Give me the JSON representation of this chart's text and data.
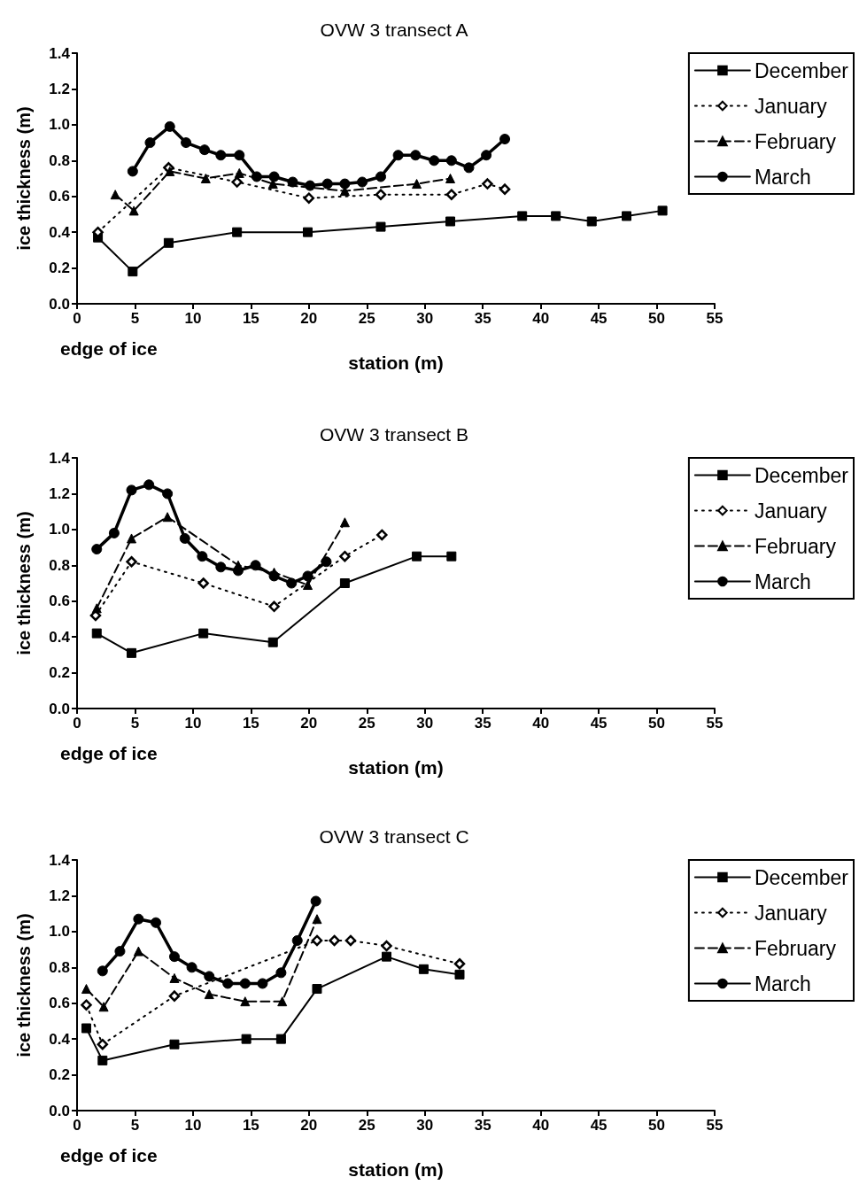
{
  "chart_data": [
    {
      "type": "line",
      "title": "OVW 3 transect A",
      "xlabel": "station (m)",
      "ylabel": "ice thickness (m)",
      "annotations": [
        "edge of ice"
      ],
      "xlim": [
        0,
        55
      ],
      "xticks": [
        0,
        5,
        10,
        15,
        20,
        25,
        30,
        35,
        40,
        45,
        50,
        55
      ],
      "ylim": [
        0,
        1.4
      ],
      "yticks": [
        {
          "value": 0,
          "label": "0.0"
        },
        {
          "value": 0.2,
          "label": "0.2"
        },
        {
          "value": 0.4,
          "label": "0.4"
        },
        {
          "value": 0.6,
          "label": "0.6"
        },
        {
          "value": 0.8,
          "label": "0.8"
        },
        {
          "value": 1.0,
          "label": "1.0"
        },
        {
          "value": 1.2,
          "label": "1.2"
        },
        {
          "value": 1.4,
          "label": "1.4"
        }
      ],
      "grid": false,
      "legend": "top right",
      "series": [
        {
          "name": "December",
          "color": "#000000",
          "marker": "square",
          "line_style": "solid",
          "x": [
            1.8,
            4.8,
            7.9,
            13.8,
            19.9,
            26.2,
            32.2,
            38.4,
            41.3,
            44.4,
            47.4,
            50.5
          ],
          "values": [
            0.37,
            0.18,
            0.34,
            0.4,
            0.4,
            0.43,
            0.46,
            0.49,
            0.49,
            0.46,
            0.49,
            0.52
          ]
        },
        {
          "name": "January",
          "color": "#000000",
          "marker": "diamond",
          "line_style": "dotted",
          "x": [
            1.8,
            7.9,
            13.8,
            20.0,
            26.2,
            32.3,
            35.4,
            36.9
          ],
          "values": [
            0.4,
            0.76,
            0.68,
            0.59,
            0.61,
            0.61,
            0.67,
            0.64
          ]
        },
        {
          "name": "February",
          "color": "#000000",
          "marker": "triangle",
          "line_style": "dashed",
          "x": [
            3.3,
            4.9,
            8.0,
            11.1,
            14.0,
            16.9,
            23.1,
            29.3,
            32.2
          ],
          "values": [
            0.61,
            0.52,
            0.74,
            0.7,
            0.73,
            0.67,
            0.63,
            0.67,
            0.7
          ]
        },
        {
          "name": "March",
          "color": "#000000",
          "marker": "circle",
          "line_style": "solid",
          "x": [
            4.8,
            6.3,
            8.0,
            9.4,
            11.0,
            12.4,
            14.0,
            15.5,
            17.0,
            18.6,
            20.1,
            21.6,
            23.1,
            24.6,
            26.2,
            27.7,
            29.2,
            30.8,
            32.3,
            33.8,
            35.3,
            36.9
          ],
          "values": [
            0.74,
            0.9,
            0.99,
            0.9,
            0.86,
            0.83,
            0.83,
            0.71,
            0.71,
            0.68,
            0.66,
            0.67,
            0.67,
            0.68,
            0.71,
            0.83,
            0.83,
            0.8,
            0.8,
            0.76,
            0.83,
            0.92
          ]
        }
      ]
    },
    {
      "type": "line",
      "title": "OVW 3 transect B",
      "xlabel": "station (m)",
      "ylabel": "ice thickness (m)",
      "annotations": [
        "edge of ice"
      ],
      "xlim": [
        0,
        55
      ],
      "xticks": [
        0,
        5,
        10,
        15,
        20,
        25,
        30,
        35,
        40,
        45,
        50,
        55
      ],
      "ylim": [
        0,
        1.4
      ],
      "yticks": [
        {
          "value": 0,
          "label": "0.0"
        },
        {
          "value": 0.2,
          "label": "0.2"
        },
        {
          "value": 0.4,
          "label": "0.4"
        },
        {
          "value": 0.6,
          "label": "0.6"
        },
        {
          "value": 0.8,
          "label": "0.8"
        },
        {
          "value": 1.0,
          "label": "1.0"
        },
        {
          "value": 1.2,
          "label": "1.2"
        },
        {
          "value": 1.4,
          "label": "1.4"
        }
      ],
      "grid": false,
      "legend": "top right",
      "series": [
        {
          "name": "December",
          "color": "#000000",
          "marker": "square",
          "line_style": "solid",
          "x": [
            1.7,
            4.7,
            10.9,
            16.9,
            23.1,
            29.3,
            32.3
          ],
          "values": [
            0.42,
            0.31,
            0.42,
            0.37,
            0.7,
            0.85,
            0.85
          ]
        },
        {
          "name": "January",
          "color": "#000000",
          "marker": "diamond",
          "line_style": "dotted",
          "x": [
            1.6,
            4.7,
            10.9,
            17.0,
            23.1,
            26.3
          ],
          "values": [
            0.52,
            0.82,
            0.7,
            0.57,
            0.85,
            0.97
          ]
        },
        {
          "name": "February",
          "color": "#000000",
          "marker": "triangle",
          "line_style": "dashed",
          "x": [
            1.7,
            4.7,
            7.8,
            13.9,
            17.0,
            19.9,
            23.1
          ],
          "values": [
            0.56,
            0.95,
            1.07,
            0.8,
            0.76,
            0.69,
            1.04
          ]
        },
        {
          "name": "March",
          "color": "#000000",
          "marker": "circle",
          "line_style": "solid",
          "x": [
            1.7,
            3.2,
            4.7,
            6.2,
            7.8,
            9.3,
            10.8,
            12.4,
            13.9,
            15.4,
            17.0,
            18.5,
            19.9,
            21.5
          ],
          "values": [
            0.89,
            0.98,
            1.22,
            1.25,
            1.2,
            0.95,
            0.85,
            0.79,
            0.77,
            0.8,
            0.74,
            0.7,
            0.74,
            0.82
          ]
        }
      ]
    },
    {
      "type": "line",
      "title": "OVW 3 transect C",
      "xlabel": "station (m)",
      "ylabel": "ice thickness (m)",
      "annotations": [
        "edge of ice"
      ],
      "xlim": [
        0,
        55
      ],
      "xticks": [
        0,
        5,
        10,
        15,
        20,
        25,
        30,
        35,
        40,
        45,
        50,
        55
      ],
      "ylim": [
        0,
        1.4
      ],
      "yticks": [
        {
          "value": 0,
          "label": "0.0"
        },
        {
          "value": 0.2,
          "label": "0.2"
        },
        {
          "value": 0.4,
          "label": "0.4"
        },
        {
          "value": 0.6,
          "label": "0.6"
        },
        {
          "value": 0.8,
          "label": "0.8"
        },
        {
          "value": 1.0,
          "label": "1.0"
        },
        {
          "value": 1.2,
          "label": "1.2"
        },
        {
          "value": 1.4,
          "label": "1.4"
        }
      ],
      "grid": false,
      "legend": "top right",
      "series": [
        {
          "name": "December",
          "color": "#000000",
          "marker": "square",
          "line_style": "solid",
          "x": [
            0.8,
            2.2,
            8.4,
            14.6,
            17.6,
            20.7,
            26.7,
            29.9,
            33.0
          ],
          "values": [
            0.46,
            0.28,
            0.37,
            0.4,
            0.4,
            0.68,
            0.86,
            0.79,
            0.76
          ]
        },
        {
          "name": "January",
          "color": "#000000",
          "marker": "diamond",
          "line_style": "dotted",
          "x": [
            0.8,
            2.2,
            8.4,
            20.7,
            22.2,
            23.6,
            26.7,
            33.0
          ],
          "values": [
            0.59,
            0.37,
            0.64,
            0.95,
            0.95,
            0.95,
            0.92,
            0.82
          ]
        },
        {
          "name": "February",
          "color": "#000000",
          "marker": "triangle",
          "line_style": "dashed",
          "x": [
            0.8,
            2.3,
            5.3,
            8.4,
            11.4,
            14.5,
            17.7,
            20.7
          ],
          "values": [
            0.68,
            0.58,
            0.89,
            0.74,
            0.65,
            0.61,
            0.61,
            1.07
          ]
        },
        {
          "name": "March",
          "color": "#000000",
          "marker": "circle",
          "line_style": "solid",
          "x": [
            2.2,
            3.7,
            5.3,
            6.8,
            8.4,
            9.9,
            11.4,
            13.0,
            14.5,
            16.0,
            17.6,
            19.0,
            20.6
          ],
          "values": [
            0.78,
            0.89,
            1.07,
            1.05,
            0.86,
            0.8,
            0.75,
            0.71,
            0.71,
            0.71,
            0.77,
            0.95,
            1.17
          ]
        }
      ]
    }
  ]
}
